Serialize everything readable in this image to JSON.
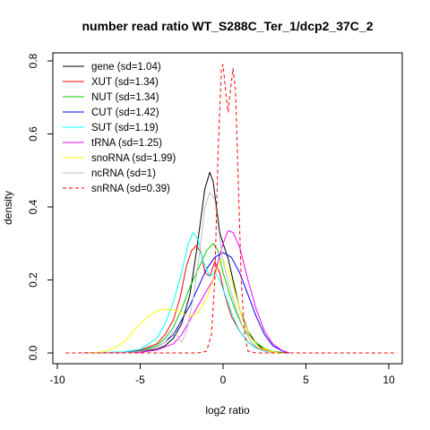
{
  "chart_data": {
    "type": "line",
    "title": "number read ratio WT_S288C_Ter_1/dcp2_37C_2",
    "xlabel": "log2 ratio",
    "ylabel": "density",
    "xlim": [
      -10,
      10.5
    ],
    "ylim": [
      0,
      0.82
    ],
    "x_ticks": [
      -10,
      -5,
      0,
      5,
      10
    ],
    "x_tick_labels": [
      "-10",
      "-5",
      "0",
      "5",
      "10"
    ],
    "y_ticks": [
      0.0,
      0.2,
      0.4,
      0.6,
      0.8
    ],
    "y_tick_labels": [
      "0.0",
      "0.2",
      "0.4",
      "0.6",
      "0.8"
    ],
    "grid": false,
    "legend_position": "top-left",
    "series": [
      {
        "name": "gene (sd=1.04)",
        "color": "#000000",
        "dash": "solid",
        "points": [
          [
            -8.5,
            0
          ],
          [
            -6,
            0.001
          ],
          [
            -5,
            0.003
          ],
          [
            -4,
            0.01
          ],
          [
            -3.5,
            0.02
          ],
          [
            -3,
            0.04
          ],
          [
            -2.5,
            0.08
          ],
          [
            -2,
            0.16
          ],
          [
            -1.6,
            0.28
          ],
          [
            -1.3,
            0.38
          ],
          [
            -1.1,
            0.45
          ],
          [
            -0.8,
            0.495
          ],
          [
            -0.6,
            0.47
          ],
          [
            -0.4,
            0.4
          ],
          [
            -0.2,
            0.33
          ],
          [
            0,
            0.3
          ],
          [
            0.3,
            0.26
          ],
          [
            0.6,
            0.2
          ],
          [
            1,
            0.12
          ],
          [
            1.5,
            0.06
          ],
          [
            2,
            0.025
          ],
          [
            2.5,
            0.01
          ],
          [
            3,
            0.003
          ],
          [
            4,
            0
          ]
        ]
      },
      {
        "name": "XUT (sd=1.34)",
        "color": "#ff0000",
        "dash": "solid",
        "points": [
          [
            -8.5,
            0
          ],
          [
            -6,
            0.002
          ],
          [
            -5,
            0.008
          ],
          [
            -4,
            0.025
          ],
          [
            -3.5,
            0.05
          ],
          [
            -3,
            0.09
          ],
          [
            -2.6,
            0.15
          ],
          [
            -2.2,
            0.24
          ],
          [
            -1.9,
            0.28
          ],
          [
            -1.6,
            0.295
          ],
          [
            -1.3,
            0.27
          ],
          [
            -1.1,
            0.22
          ],
          [
            -0.8,
            0.21
          ],
          [
            -0.5,
            0.25
          ],
          [
            -0.2,
            0.22
          ],
          [
            0.1,
            0.16
          ],
          [
            0.5,
            0.1
          ],
          [
            1,
            0.06
          ],
          [
            1.5,
            0.03
          ],
          [
            2,
            0.015
          ],
          [
            3,
            0.003
          ],
          [
            4,
            0
          ]
        ]
      },
      {
        "name": "NUT (sd=1.34)",
        "color": "#00cd00",
        "dash": "solid",
        "points": [
          [
            -8.5,
            0
          ],
          [
            -6,
            0.002
          ],
          [
            -5,
            0.006
          ],
          [
            -4,
            0.02
          ],
          [
            -3.5,
            0.04
          ],
          [
            -3,
            0.07
          ],
          [
            -2.5,
            0.12
          ],
          [
            -2,
            0.18
          ],
          [
            -1.5,
            0.23
          ],
          [
            -1,
            0.28
          ],
          [
            -0.6,
            0.3
          ],
          [
            -0.3,
            0.28
          ],
          [
            0,
            0.22
          ],
          [
            0.4,
            0.16
          ],
          [
            0.8,
            0.11
          ],
          [
            1.2,
            0.07
          ],
          [
            1.8,
            0.035
          ],
          [
            2.5,
            0.012
          ],
          [
            3,
            0.004
          ],
          [
            4,
            0
          ]
        ]
      },
      {
        "name": "CUT (sd=1.42)",
        "color": "#0000ff",
        "dash": "solid",
        "points": [
          [
            -8.5,
            0
          ],
          [
            -6,
            0.002
          ],
          [
            -5,
            0.005
          ],
          [
            -4,
            0.015
          ],
          [
            -3.5,
            0.03
          ],
          [
            -3,
            0.05
          ],
          [
            -2.5,
            0.09
          ],
          [
            -2,
            0.13
          ],
          [
            -1.5,
            0.18
          ],
          [
            -1,
            0.23
          ],
          [
            -0.5,
            0.262
          ],
          [
            0,
            0.275
          ],
          [
            0.5,
            0.262
          ],
          [
            1,
            0.22
          ],
          [
            1.5,
            0.16
          ],
          [
            2,
            0.1
          ],
          [
            2.5,
            0.05
          ],
          [
            3,
            0.02
          ],
          [
            3.5,
            0.007
          ],
          [
            4,
            0
          ]
        ]
      },
      {
        "name": "SUT (sd=1.19)",
        "color": "#00ffff",
        "dash": "solid",
        "points": [
          [
            -8.5,
            0
          ],
          [
            -6,
            0.003
          ],
          [
            -5,
            0.01
          ],
          [
            -4,
            0.04
          ],
          [
            -3.5,
            0.08
          ],
          [
            -3,
            0.14
          ],
          [
            -2.5,
            0.22
          ],
          [
            -2.1,
            0.3
          ],
          [
            -1.8,
            0.33
          ],
          [
            -1.5,
            0.31
          ],
          [
            -1.2,
            0.25
          ],
          [
            -0.8,
            0.21
          ],
          [
            -0.5,
            0.22
          ],
          [
            -0.2,
            0.2
          ],
          [
            0.2,
            0.15
          ],
          [
            0.6,
            0.1
          ],
          [
            1,
            0.06
          ],
          [
            1.5,
            0.03
          ],
          [
            2,
            0.013
          ],
          [
            2.5,
            0.005
          ],
          [
            3,
            0
          ]
        ]
      },
      {
        "name": "tRNA (sd=1.25)",
        "color": "#ff00ff",
        "dash": "solid",
        "points": [
          [
            -8.5,
            0
          ],
          [
            -5,
            0.002
          ],
          [
            -4,
            0.008
          ],
          [
            -3,
            0.025
          ],
          [
            -2.5,
            0.05
          ],
          [
            -2,
            0.09
          ],
          [
            -1.5,
            0.13
          ],
          [
            -1,
            0.17
          ],
          [
            -0.6,
            0.2
          ],
          [
            -0.3,
            0.25
          ],
          [
            0,
            0.3
          ],
          [
            0.3,
            0.335
          ],
          [
            0.6,
            0.33
          ],
          [
            1,
            0.29
          ],
          [
            1.5,
            0.2
          ],
          [
            2,
            0.12
          ],
          [
            2.5,
            0.06
          ],
          [
            3,
            0.025
          ],
          [
            3.5,
            0.008
          ],
          [
            4,
            0
          ]
        ]
      },
      {
        "name": "snoRNA (sd=1.99)",
        "color": "#ffff00",
        "dash": "solid",
        "points": [
          [
            -8.5,
            0
          ],
          [
            -7.5,
            0.002
          ],
          [
            -7,
            0.006
          ],
          [
            -6.5,
            0.015
          ],
          [
            -6,
            0.03
          ],
          [
            -5.5,
            0.055
          ],
          [
            -5,
            0.08
          ],
          [
            -4.5,
            0.1
          ],
          [
            -4,
            0.115
          ],
          [
            -3.5,
            0.12
          ],
          [
            -3,
            0.118
          ],
          [
            -2.5,
            0.11
          ],
          [
            -2,
            0.1
          ],
          [
            -1.5,
            0.11
          ],
          [
            -1,
            0.15
          ],
          [
            -0.5,
            0.21
          ],
          [
            -0.2,
            0.25
          ],
          [
            0,
            0.255
          ],
          [
            0.3,
            0.23
          ],
          [
            0.7,
            0.17
          ],
          [
            1.2,
            0.09
          ],
          [
            1.7,
            0.04
          ],
          [
            2.2,
            0.015
          ],
          [
            3,
            0.003
          ],
          [
            3.5,
            0
          ]
        ]
      },
      {
        "name": "ncRNA (sd=1)",
        "color": "#bebebe",
        "dash": "solid",
        "points": [
          [
            -8.5,
            0
          ],
          [
            -6,
            0.001
          ],
          [
            -5,
            0.004
          ],
          [
            -4,
            0.015
          ],
          [
            -3.5,
            0.03
          ],
          [
            -3,
            0.06
          ],
          [
            -2.5,
            0.03
          ],
          [
            -2.2,
            0.06
          ],
          [
            -1.8,
            0.15
          ],
          [
            -1.4,
            0.28
          ],
          [
            -1.1,
            0.4
          ],
          [
            -0.8,
            0.44
          ],
          [
            -0.5,
            0.42
          ],
          [
            -0.3,
            0.35
          ],
          [
            0,
            0.25
          ],
          [
            0.4,
            0.18
          ],
          [
            0.8,
            0.12
          ],
          [
            1.2,
            0.07
          ],
          [
            1.7,
            0.03
          ],
          [
            2.2,
            0.01
          ],
          [
            3,
            0
          ]
        ]
      },
      {
        "name": "snRNA (sd=0.39)",
        "color": "#ff0000",
        "dash": "dashed",
        "points": [
          [
            -9.5,
            0
          ],
          [
            -1.5,
            0
          ],
          [
            -1,
            0.005
          ],
          [
            -0.7,
            0.05
          ],
          [
            -0.5,
            0.2
          ],
          [
            -0.3,
            0.55
          ],
          [
            -0.1,
            0.78
          ],
          [
            0,
            0.79
          ],
          [
            0.15,
            0.72
          ],
          [
            0.3,
            0.66
          ],
          [
            0.45,
            0.72
          ],
          [
            0.6,
            0.78
          ],
          [
            0.75,
            0.72
          ],
          [
            0.9,
            0.5
          ],
          [
            1.1,
            0.2
          ],
          [
            1.3,
            0.05
          ],
          [
            1.5,
            0.005
          ],
          [
            2,
            0
          ],
          [
            10.5,
            0
          ]
        ]
      }
    ]
  }
}
